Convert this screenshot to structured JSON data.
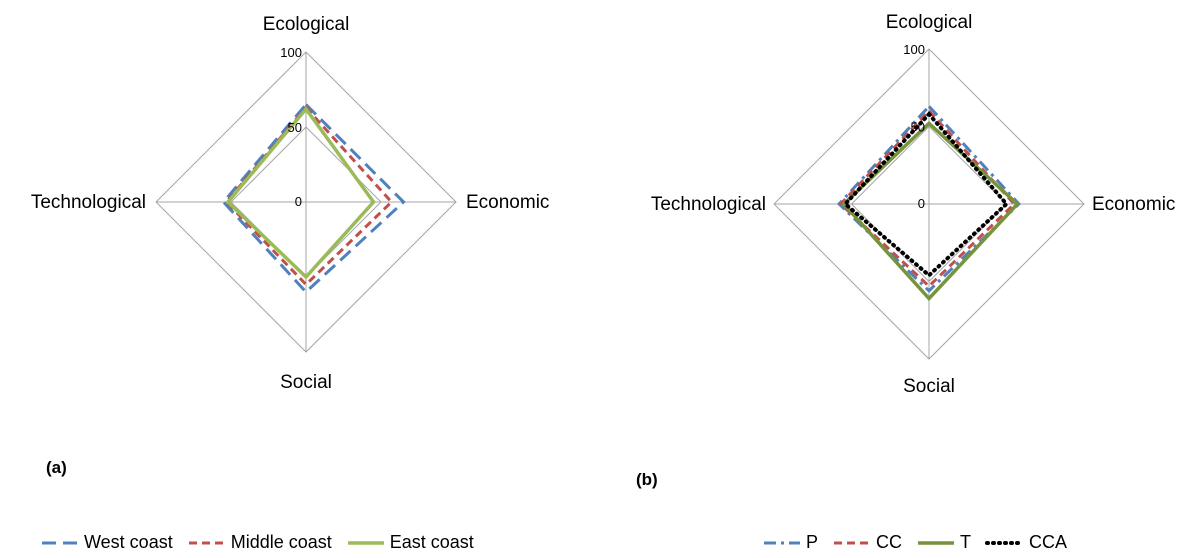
{
  "chart_data": [
    {
      "type": "radar",
      "panel": "(a)",
      "axes": [
        "Ecological",
        "Economic",
        "Social",
        "Technological"
      ],
      "ticks": [
        "0",
        "50",
        "100"
      ],
      "rlim": [
        0,
        100
      ],
      "series": [
        {
          "name": "West coast",
          "color": "#4f81bd",
          "style": "long-dash",
          "values": [
            65,
            65,
            60,
            55
          ]
        },
        {
          "name": "Middle coast",
          "color": "#c0504d",
          "style": "short-dash",
          "values": [
            63,
            57,
            55,
            53
          ]
        },
        {
          "name": "East coast",
          "color": "#9bbb59",
          "style": "solid",
          "values": [
            62,
            45,
            50,
            52
          ]
        }
      ]
    },
    {
      "type": "radar",
      "panel": "(b)",
      "axes": [
        "Ecological",
        "Economic",
        "Social",
        "Technological"
      ],
      "ticks": [
        "0",
        "50",
        "100"
      ],
      "rlim": [
        0,
        100
      ],
      "series": [
        {
          "name": "P",
          "color": "#4f81bd",
          "style": "dash-dot",
          "values": [
            63,
            58,
            56,
            58
          ]
        },
        {
          "name": "CC",
          "color": "#c0504d",
          "style": "short-dash",
          "values": [
            60,
            55,
            53,
            57
          ]
        },
        {
          "name": "T",
          "color": "#77933c",
          "style": "solid",
          "values": [
            52,
            57,
            61,
            55
          ]
        },
        {
          "name": "CCA",
          "color": "#000000",
          "style": "dotted",
          "values": [
            58,
            50,
            46,
            54
          ]
        }
      ]
    }
  ]
}
